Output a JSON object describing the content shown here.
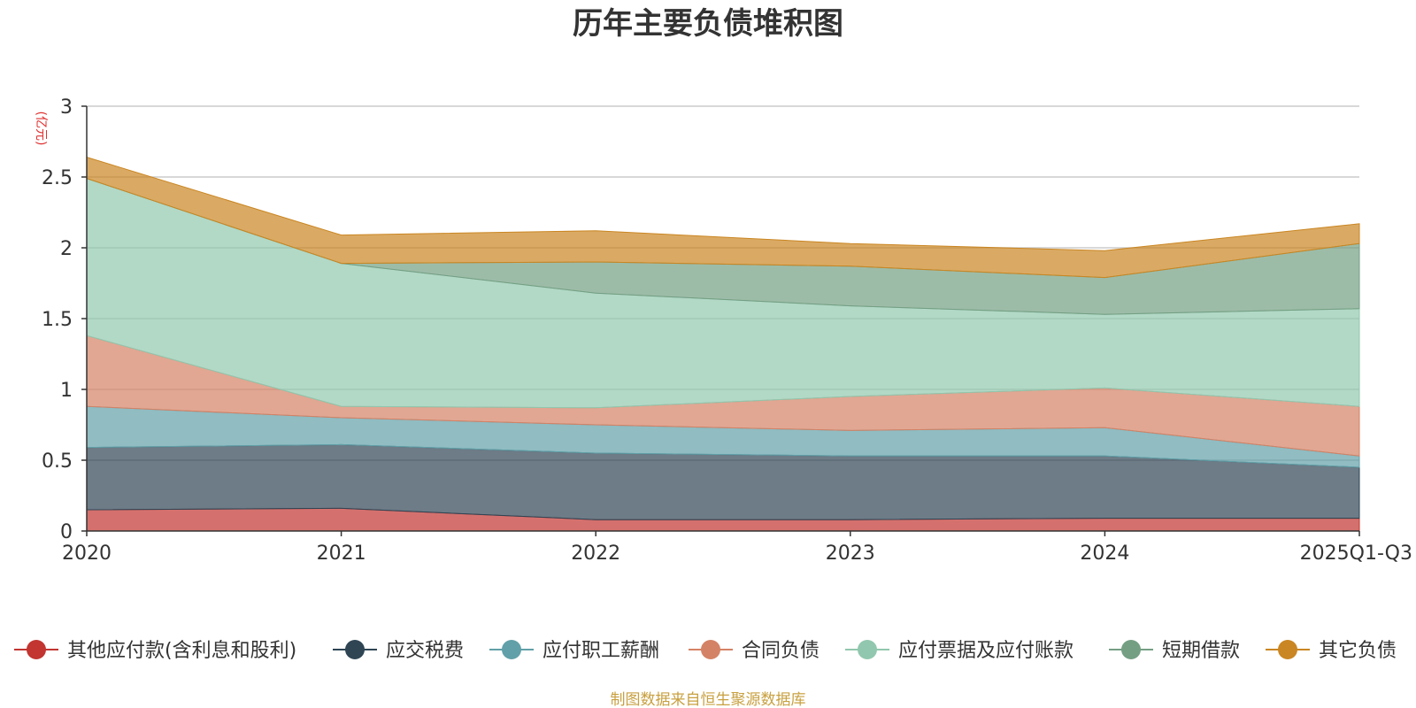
{
  "chart_data": {
    "type": "area",
    "stacked": true,
    "title": "历年主要负债堆积图",
    "unit_label": "(亿元)",
    "categories": [
      "2020",
      "2021",
      "2022",
      "2023",
      "2024",
      "2025Q1-Q3"
    ],
    "ylim": [
      0,
      3
    ],
    "yticks": [
      "0",
      "0.5",
      "1",
      "1.5",
      "2",
      "2.5",
      "3"
    ],
    "grid": true,
    "legend_position": "bottom",
    "series": [
      {
        "name": "其他应付款(含利息和股利)",
        "color": "#c23531",
        "values": [
          0.15,
          0.16,
          0.08,
          0.08,
          0.09,
          0.09
        ]
      },
      {
        "name": "应交税费",
        "color": "#2f4554",
        "values": [
          0.44,
          0.45,
          0.47,
          0.45,
          0.44,
          0.36
        ]
      },
      {
        "name": "应付职工薪酬",
        "color": "#61a0a8",
        "values": [
          0.29,
          0.19,
          0.2,
          0.18,
          0.2,
          0.08
        ]
      },
      {
        "name": "合同负债",
        "color": "#d48265",
        "values": [
          0.5,
          0.08,
          0.12,
          0.24,
          0.28,
          0.35
        ]
      },
      {
        "name": "应付票据及应付账款",
        "color": "#91c7ae",
        "values": [
          1.11,
          1.01,
          0.81,
          0.64,
          0.52,
          0.69
        ]
      },
      {
        "name": "短期借款",
        "color": "#749f83",
        "values": [
          0.0,
          0.0,
          0.22,
          0.28,
          0.26,
          0.46
        ]
      },
      {
        "name": "其它负债",
        "color": "#ca8622",
        "values": [
          0.15,
          0.2,
          0.22,
          0.16,
          0.19,
          0.14
        ]
      }
    ],
    "source": "制图数据来自恒生聚源数据库"
  }
}
